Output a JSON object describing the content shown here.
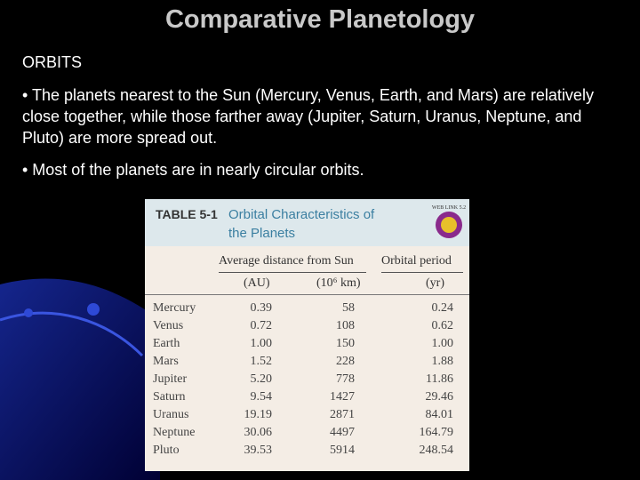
{
  "slide": {
    "title": "Comparative Planetology",
    "heading": "ORBITS",
    "bullets": [
      "• The planets nearest to the Sun (Mercury, Venus, Earth, and Mars) are relatively close together, while those farther away (Jupiter, Saturn, Uranus, Neptune, and Pluto) are more spread out.",
      "• Most of the planets are in nearly circular orbits."
    ]
  },
  "table": {
    "label": "TABLE 5-1",
    "title_line1": "Orbital Characteristics of",
    "title_line2": "the Planets",
    "badge": "WEB LINK 5.2",
    "group_header_distance": "Average distance from Sun",
    "group_header_period": "Orbital period",
    "unit_headers": [
      "(AU)",
      "(10⁶ km)",
      "(yr)"
    ],
    "rows": [
      [
        "Mercury",
        "0.39",
        "58",
        "0.24"
      ],
      [
        "Venus",
        "0.72",
        "108",
        "0.62"
      ],
      [
        "Earth",
        "1.00",
        "150",
        "1.00"
      ],
      [
        "Mars",
        "1.52",
        "228",
        "1.88"
      ],
      [
        "Jupiter",
        "5.20",
        "778",
        "11.86"
      ],
      [
        "Saturn",
        "9.54",
        "1427",
        "29.46"
      ],
      [
        "Uranus",
        "19.19",
        "2871",
        "84.01"
      ],
      [
        "Neptune",
        "30.06",
        "4497",
        "164.79"
      ],
      [
        "Pluto",
        "39.53",
        "5914",
        "248.54"
      ]
    ]
  }
}
